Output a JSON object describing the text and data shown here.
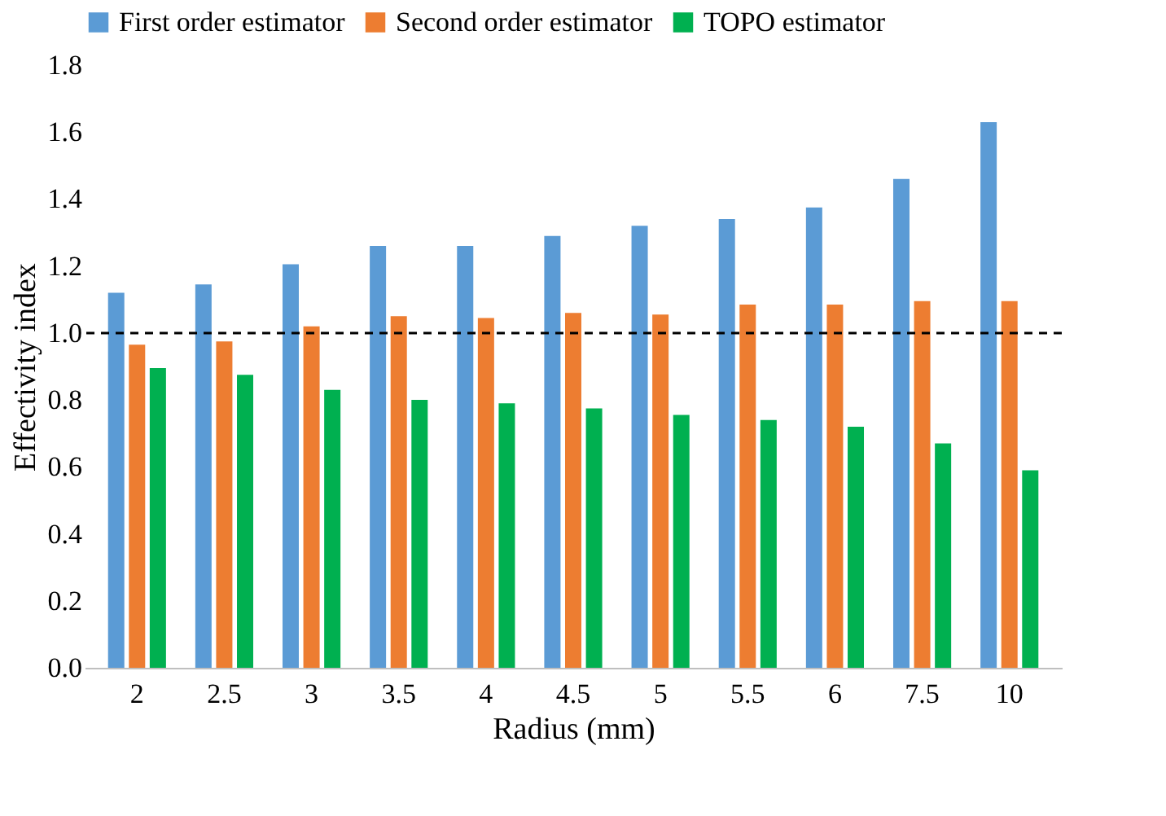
{
  "chart_data": {
    "type": "bar",
    "xlabel": "Radius (mm)",
    "ylabel": "Effectivity  index",
    "categories": [
      "2",
      "2.5",
      "3",
      "3.5",
      "4",
      "4.5",
      "5",
      "5.5",
      "6",
      "7.5",
      "10"
    ],
    "series": [
      {
        "name": "First order estimator",
        "color": "#5b9bd5",
        "values": [
          1.12,
          1.145,
          1.205,
          1.26,
          1.26,
          1.29,
          1.32,
          1.34,
          1.375,
          1.46,
          1.63
        ]
      },
      {
        "name": "Second order estimator",
        "color": "#ed7d31",
        "values": [
          0.965,
          0.975,
          1.02,
          1.05,
          1.045,
          1.06,
          1.055,
          1.085,
          1.085,
          1.095,
          1.095
        ]
      },
      {
        "name": "TOPO estimator",
        "color": "#00b050",
        "values": [
          0.895,
          0.875,
          0.83,
          0.8,
          0.79,
          0.775,
          0.755,
          0.74,
          0.72,
          0.67,
          0.59
        ]
      }
    ],
    "ylim": [
      0,
      1.8
    ],
    "yticks": [
      {
        "value": 0,
        "label": "0.0"
      },
      0.2,
      0.4,
      0.6,
      0.8,
      {
        "value": 1,
        "label": "1.0"
      },
      1.2,
      1.4,
      1.6,
      1.8
    ],
    "ref_lines": [
      {
        "axis": "y",
        "value": 1.0,
        "line_style": "dashed",
        "color": "#000000"
      }
    ],
    "legend": "top",
    "grid": false
  }
}
